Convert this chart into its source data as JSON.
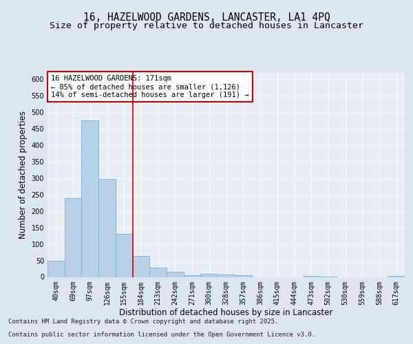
{
  "title_line1": "16, HAZELWOOD GARDENS, LANCASTER, LA1 4PQ",
  "title_line2": "Size of property relative to detached houses in Lancaster",
  "xlabel": "Distribution of detached houses by size in Lancaster",
  "ylabel": "Number of detached properties",
  "bar_labels": [
    "40sqm",
    "69sqm",
    "97sqm",
    "126sqm",
    "155sqm",
    "184sqm",
    "213sqm",
    "242sqm",
    "271sqm",
    "300sqm",
    "328sqm",
    "357sqm",
    "386sqm",
    "415sqm",
    "444sqm",
    "473sqm",
    "502sqm",
    "530sqm",
    "559sqm",
    "588sqm",
    "617sqm"
  ],
  "bar_values": [
    49,
    239,
    474,
    298,
    130,
    64,
    28,
    15,
    6,
    9,
    7,
    5,
    0,
    0,
    0,
    3,
    1,
    0,
    0,
    0,
    3
  ],
  "bar_color": "#b8d0e8",
  "bar_edge_color": "#7aafd4",
  "vline_color": "#cc0000",
  "annotation_title": "16 HAZELWOOD GARDENS: 171sqm",
  "annotation_line1": "← 85% of detached houses are smaller (1,126)",
  "annotation_line2": "14% of semi-detached houses are larger (191) →",
  "annotation_box_facecolor": "#ffffff",
  "annotation_box_edgecolor": "#cc0000",
  "ylim": [
    0,
    620
  ],
  "yticks": [
    0,
    50,
    100,
    150,
    200,
    250,
    300,
    350,
    400,
    450,
    500,
    550,
    600
  ],
  "bg_color": "#dce6f0",
  "plot_bg_color": "#e8eef5",
  "grid_color": "#ffffff",
  "footer_line1": "Contains HM Land Registry data © Crown copyright and database right 2025.",
  "footer_line2": "Contains public sector information licensed under the Open Government Licence v3.0.",
  "title_fontsize": 10.5,
  "subtitle_fontsize": 9.5,
  "ylabel_fontsize": 8.5,
  "xlabel_fontsize": 8.5,
  "tick_fontsize": 7,
  "annotation_fontsize": 7.5,
  "footer_fontsize": 6.5
}
